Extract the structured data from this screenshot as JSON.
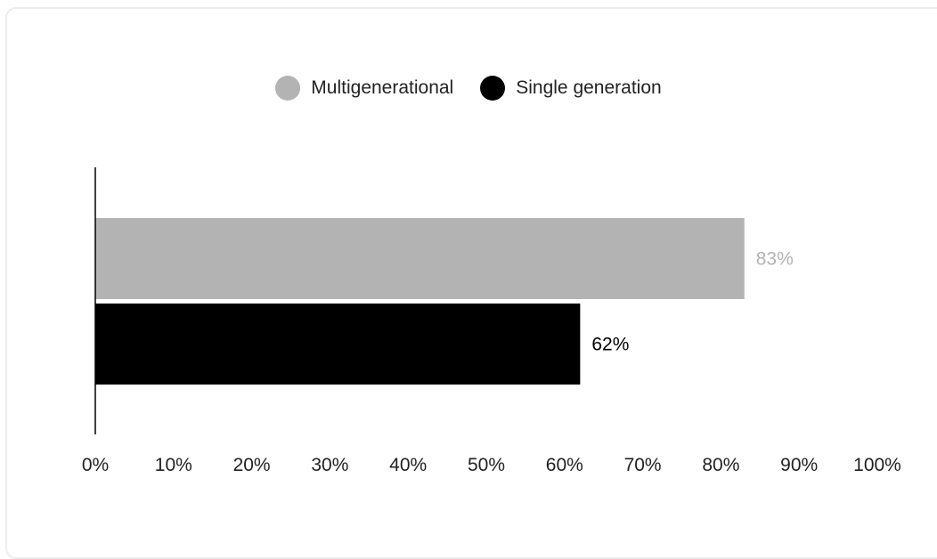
{
  "chart_data": {
    "type": "bar",
    "orientation": "horizontal",
    "title": "",
    "xlabel": "",
    "ylabel": "",
    "xlim": [
      0,
      100
    ],
    "ticks": [
      "0%",
      "10%",
      "20%",
      "30%",
      "40%",
      "50%",
      "60%",
      "70%",
      "80%",
      "90%",
      "100%"
    ],
    "grid": false,
    "legend_position": "top-center",
    "series": [
      {
        "name": "Multigenerational",
        "value": 83,
        "label": "83%",
        "color": "#b3b3b3",
        "label_color": "#b3b3b3"
      },
      {
        "name": "Single generation",
        "value": 62,
        "label": "62%",
        "color": "#000000",
        "label_color": "#000000"
      }
    ]
  }
}
